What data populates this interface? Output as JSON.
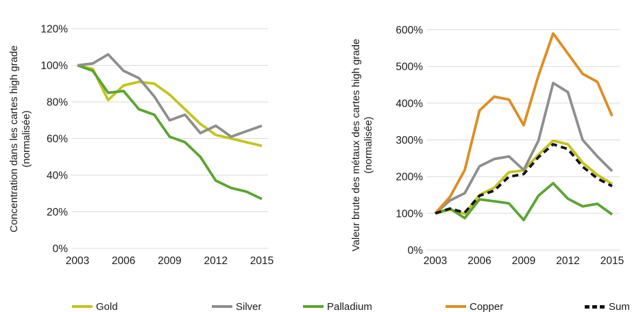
{
  "page": {
    "background": "#ffffff"
  },
  "legend": {
    "items": [
      {
        "label": "Gold",
        "color": "#C3C41F",
        "dash": false
      },
      {
        "label": "Silver",
        "color": "#8E8E8E",
        "dash": false
      },
      {
        "label": "Palladium",
        "color": "#5AA532",
        "dash": false
      },
      {
        "label": "Copper",
        "color": "#DE8D23",
        "dash": false
      },
      {
        "label": "Sum",
        "color": "#141414",
        "dash": true
      }
    ]
  },
  "chart_data": [
    {
      "id": "concentration",
      "type": "line",
      "title": "",
      "ylabel_line1": "Concentration dans les cartes high grade",
      "ylabel_line2": "(normalisée)",
      "x": [
        2003,
        2004,
        2005,
        2006,
        2007,
        2008,
        2009,
        2010,
        2011,
        2012,
        2013,
        2014,
        2015
      ],
      "xtick_labels": [
        "2003",
        "2006",
        "2009",
        "2012",
        "2015"
      ],
      "xtick_values": [
        2003,
        2006,
        2009,
        2012,
        2015
      ],
      "ylim": [
        0,
        120
      ],
      "ytick_values": [
        0,
        20,
        40,
        60,
        80,
        100,
        120
      ],
      "ytick_labels": [
        "0%",
        "20%",
        "40%",
        "60%",
        "80%",
        "100%",
        "120%"
      ],
      "grid": true,
      "series": [
        {
          "name": "Gold",
          "color": "#C3C41F",
          "dashed": false,
          "values": [
            100,
            98,
            81,
            89,
            91,
            90,
            84,
            76,
            68,
            62,
            60,
            58,
            56
          ]
        },
        {
          "name": "Palladium",
          "color": "#5AA532",
          "dashed": false,
          "values": [
            100,
            97,
            85,
            86,
            76,
            73,
            61,
            58,
            50,
            37,
            33,
            31,
            27
          ]
        },
        {
          "name": "Silver",
          "color": "#8E8E8E",
          "dashed": false,
          "values": [
            100,
            101,
            106,
            97,
            93,
            83,
            70,
            73,
            63,
            67,
            61,
            64,
            67
          ]
        }
      ]
    },
    {
      "id": "gross-value",
      "type": "line",
      "title": "",
      "ylabel_line1": "Valeur brute des métaux des cartes high grade",
      "ylabel_line2": "(normalisée)",
      "x": [
        2003,
        2004,
        2005,
        2006,
        2007,
        2008,
        2009,
        2010,
        2011,
        2012,
        2013,
        2014,
        2015
      ],
      "xtick_labels": [
        "2003",
        "2006",
        "2009",
        "2012",
        "2015"
      ],
      "xtick_values": [
        2003,
        2006,
        2009,
        2012,
        2015
      ],
      "ylim": [
        0,
        600
      ],
      "ytick_values": [
        0,
        100,
        200,
        300,
        400,
        500,
        600
      ],
      "ytick_labels": [
        "0%",
        "100%",
        "200%",
        "300%",
        "400%",
        "500%",
        "600%"
      ],
      "grid": true,
      "series": [
        {
          "name": "Gold",
          "color": "#C3C41F",
          "dashed": false,
          "values": [
            100,
            110,
            99,
            150,
            170,
            212,
            217,
            260,
            298,
            288,
            238,
            205,
            180
          ]
        },
        {
          "name": "Palladium",
          "color": "#5AA532",
          "dashed": false,
          "values": [
            100,
            113,
            87,
            138,
            133,
            127,
            82,
            148,
            182,
            140,
            119,
            126,
            97
          ]
        },
        {
          "name": "Silver",
          "color": "#8E8E8E",
          "dashed": false,
          "values": [
            100,
            135,
            155,
            228,
            248,
            255,
            218,
            298,
            455,
            430,
            300,
            255,
            215
          ]
        },
        {
          "name": "Copper",
          "color": "#DE8D23",
          "dashed": false,
          "values": [
            100,
            145,
            218,
            380,
            418,
            410,
            340,
            475,
            590,
            535,
            480,
            458,
            365
          ]
        },
        {
          "name": "Sum",
          "color": "#141414",
          "dashed": true,
          "values": [
            100,
            113,
            102,
            148,
            162,
            200,
            207,
            253,
            288,
            275,
            227,
            195,
            174
          ]
        }
      ]
    }
  ]
}
